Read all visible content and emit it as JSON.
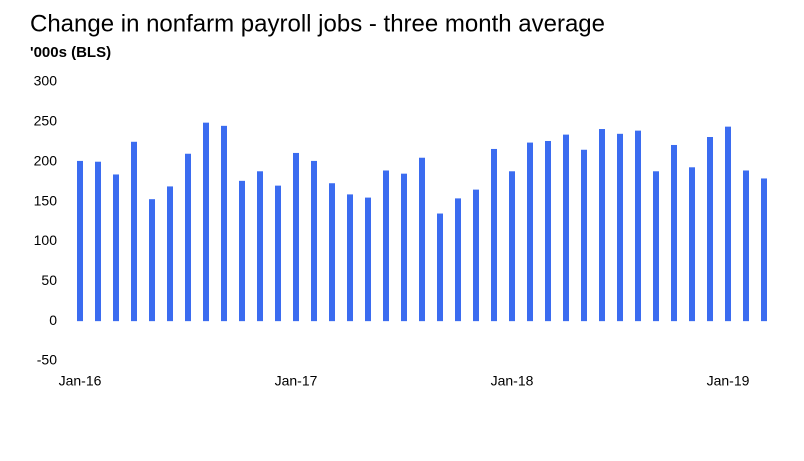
{
  "chart_data": {
    "type": "bar",
    "title": "Change in nonfarm payroll jobs - three month  average",
    "subtitle": "'000s (BLS)",
    "categories": [
      "Jan-16",
      null,
      null,
      null,
      null,
      null,
      null,
      null,
      null,
      null,
      null,
      null,
      "Jan-17",
      null,
      null,
      null,
      null,
      null,
      null,
      null,
      null,
      null,
      null,
      null,
      "Jan-18",
      null,
      null,
      null,
      null,
      null,
      null,
      null,
      null,
      null,
      null,
      null,
      "Jan-19",
      null,
      null
    ],
    "values": [
      201,
      200,
      184,
      225,
      153,
      169,
      210,
      249,
      245,
      176,
      188,
      170,
      211,
      201,
      173,
      159,
      155,
      189,
      185,
      205,
      135,
      154,
      165,
      216,
      188,
      224,
      226,
      234,
      215,
      241,
      235,
      239,
      188,
      221,
      193,
      231,
      244,
      189,
      179
    ],
    "color": "#3b6cf0",
    "ylim": [
      -50,
      300
    ],
    "yticks": [
      -50,
      0,
      50,
      100,
      150,
      200,
      250,
      300
    ],
    "grid": false
  }
}
